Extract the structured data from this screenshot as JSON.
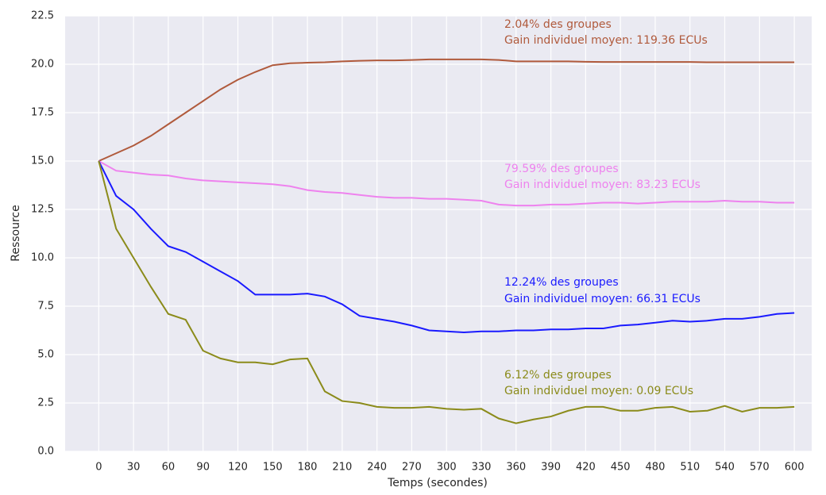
{
  "chart_data": {
    "type": "line",
    "x": [
      0,
      15,
      30,
      45,
      60,
      75,
      90,
      105,
      120,
      135,
      150,
      165,
      180,
      195,
      210,
      225,
      240,
      255,
      270,
      285,
      300,
      315,
      330,
      345,
      360,
      375,
      390,
      405,
      420,
      435,
      450,
      465,
      480,
      495,
      510,
      525,
      540,
      555,
      570,
      585,
      600
    ],
    "series": [
      {
        "color": "#b05a3c",
        "annotation": [
          "2.04% des groupes",
          "Gain individuel moyen: 119.36 ECUs"
        ],
        "values": [
          15,
          15.4,
          15.8,
          16.3,
          16.9,
          17.5,
          18.1,
          18.7,
          19.2,
          19.6,
          19.95,
          20.05,
          20.08,
          20.1,
          20.15,
          20.18,
          20.2,
          20.2,
          20.22,
          20.25,
          20.25,
          20.25,
          20.25,
          20.22,
          20.15,
          20.15,
          20.15,
          20.15,
          20.13,
          20.12,
          20.12,
          20.12,
          20.12,
          20.12,
          20.12,
          20.1,
          20.1,
          20.1,
          20.1,
          20.1,
          20.1
        ]
      },
      {
        "color": "#ee82ee",
        "annotation": [
          "79.59% des groupes",
          "Gain individuel moyen: 83.23 ECUs"
        ],
        "values": [
          15,
          14.5,
          14.4,
          14.3,
          14.25,
          14.1,
          14.0,
          13.95,
          13.9,
          13.85,
          13.8,
          13.7,
          13.5,
          13.4,
          13.35,
          13.25,
          13.15,
          13.1,
          13.1,
          13.05,
          13.05,
          13.0,
          12.95,
          12.75,
          12.7,
          12.7,
          12.75,
          12.75,
          12.8,
          12.85,
          12.85,
          12.8,
          12.85,
          12.9,
          12.9,
          12.9,
          12.95,
          12.9,
          12.9,
          12.85,
          12.85
        ]
      },
      {
        "color": "#1a1aff",
        "annotation": [
          "12.24% des groupes",
          "Gain individuel moyen: 66.31 ECUs"
        ],
        "values": [
          15,
          13.2,
          12.5,
          11.5,
          10.6,
          10.3,
          9.8,
          9.3,
          8.8,
          8.1,
          8.1,
          8.1,
          8.15,
          8.0,
          7.6,
          7.0,
          6.85,
          6.7,
          6.5,
          6.25,
          6.2,
          6.15,
          6.2,
          6.2,
          6.25,
          6.25,
          6.3,
          6.3,
          6.35,
          6.35,
          6.5,
          6.55,
          6.65,
          6.75,
          6.7,
          6.75,
          6.85,
          6.85,
          6.95,
          7.1,
          7.15
        ]
      },
      {
        "color": "#8b8b1a",
        "annotation": [
          "6.12% des groupes",
          "Gain individuel moyen: 0.09 ECUs"
        ],
        "values": [
          15,
          11.5,
          10.0,
          8.5,
          7.1,
          6.8,
          5.2,
          4.8,
          4.6,
          4.6,
          4.5,
          4.75,
          4.8,
          3.1,
          2.6,
          2.5,
          2.3,
          2.25,
          2.25,
          2.3,
          2.2,
          2.15,
          2.2,
          1.7,
          1.45,
          1.65,
          1.8,
          2.1,
          2.3,
          2.3,
          2.1,
          2.1,
          2.25,
          2.3,
          2.05,
          2.1,
          2.35,
          2.05,
          2.25,
          2.25,
          2.3
        ]
      }
    ],
    "xlabel": "Temps (secondes)",
    "ylabel": "Ressource",
    "xlim": [
      -29,
      615
    ],
    "ylim": [
      0,
      22.5
    ],
    "xticks": [
      0,
      30,
      60,
      90,
      120,
      150,
      180,
      210,
      240,
      270,
      300,
      330,
      360,
      390,
      420,
      450,
      480,
      510,
      540,
      570,
      600
    ],
    "yticks": [
      {
        "value": 0,
        "label": "0.0"
      },
      {
        "value": 2.5,
        "label": "2.5"
      },
      {
        "value": 5,
        "label": "5.0"
      },
      {
        "value": 7.5,
        "label": "7.5"
      },
      {
        "value": 10,
        "label": "10.0"
      },
      {
        "value": 12.5,
        "label": "12.5"
      },
      {
        "value": 15,
        "label": "15.0"
      },
      {
        "value": 17.5,
        "label": "17.5"
      },
      {
        "value": 20,
        "label": "20.0"
      },
      {
        "value": 22.5,
        "label": "22.5"
      }
    ],
    "grid": true
  }
}
